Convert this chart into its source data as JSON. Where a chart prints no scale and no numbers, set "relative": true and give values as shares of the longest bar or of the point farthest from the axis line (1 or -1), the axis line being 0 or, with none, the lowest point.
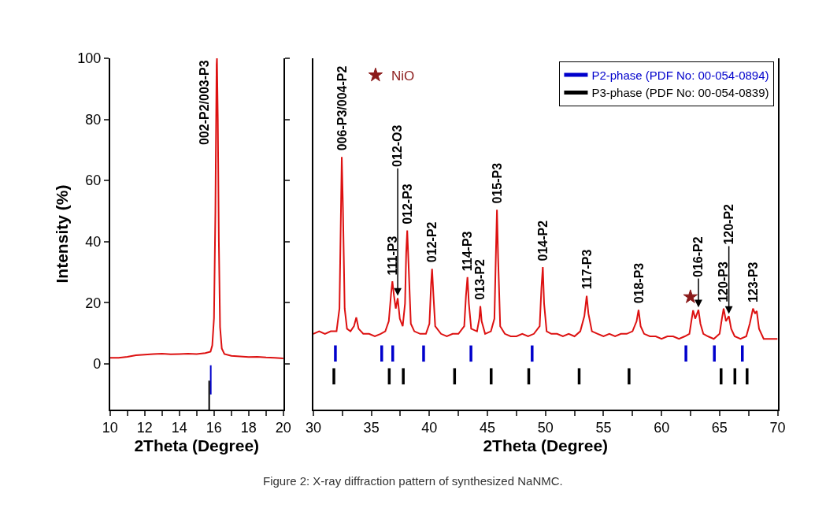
{
  "chart_data": [
    {
      "type": "line",
      "xlabel": "2Theta (Degree)",
      "ylabel": "Intensity (%)",
      "xlim": [
        10,
        20
      ],
      "xticks": [
        10,
        {
          "value": 11,
          "label": null
        },
        12,
        {
          "value": 13,
          "label": null
        },
        14,
        {
          "value": 15,
          "label": null
        },
        16,
        {
          "value": 17,
          "label": null
        },
        18,
        {
          "value": 19,
          "label": null
        },
        20
      ],
      "ylim": [
        -15,
        100
      ],
      "yticks": [
        0,
        20,
        40,
        60,
        80,
        100
      ],
      "series": [
        {
          "color": "#dd1111",
          "x": [
            10,
            10.5,
            11,
            11.5,
            12,
            12.5,
            13,
            13.5,
            14,
            14.5,
            15,
            15.5,
            15.8,
            15.9,
            16.0,
            16.08,
            16.15,
            16.17,
            16.22,
            16.28,
            16.35,
            16.45,
            16.6,
            17,
            17.5,
            18,
            18.5,
            19,
            19.5,
            20
          ],
          "values": [
            2,
            2,
            2.3,
            2.8,
            3,
            3.2,
            3.3,
            3.1,
            3.2,
            3.3,
            3.2,
            3.5,
            4,
            6,
            15,
            50,
            98,
            100,
            80,
            40,
            12,
            5,
            3.2,
            2.6,
            2.4,
            2.2,
            2.3,
            2.1,
            2,
            1.8
          ]
        },
        {
          "type": "bar",
          "color": "#0000cc",
          "x": [
            15.81
          ],
          "values": [
            9.5
          ],
          "base": [
            -10
          ]
        },
        {
          "type": "bar",
          "color": "#000000",
          "x": [
            15.71
          ],
          "values": [
            9.5
          ],
          "base": [
            -15
          ]
        }
      ],
      "annotations": [
        {
          "text": "002-P2/003-P3",
          "x": 16.17,
          "y": 100
        }
      ]
    },
    {
      "type": "line",
      "relative": true,
      "xlabel": "2Theta (Degree)",
      "xlim": [
        30,
        70
      ],
      "xticks": [
        30,
        {
          "value": 32.5,
          "label": null
        },
        35,
        {
          "value": 37.5,
          "label": null
        },
        40,
        {
          "value": 42.5,
          "label": null
        },
        45,
        {
          "value": 47.5,
          "label": null
        },
        50,
        {
          "value": 52.5,
          "label": null
        },
        55,
        {
          "value": 57.5,
          "label": null
        },
        60,
        {
          "value": 62.5,
          "label": null
        },
        65,
        {
          "value": 67.5,
          "label": null
        },
        70
      ],
      "tick_labels": "x",
      "legend": "top right",
      "series": [
        {
          "color": "#dd1111",
          "x": [
            30,
            30.5,
            31,
            31.5,
            32,
            32.25,
            32.4,
            32.45,
            32.55,
            32.7,
            32.9,
            33.2,
            33.5,
            33.7,
            33.9,
            34.3,
            34.8,
            35.3,
            35.8,
            36.2,
            36.5,
            36.7,
            36.81,
            36.95,
            37.1,
            37.27,
            37.45,
            37.7,
            37.9,
            38.0,
            38.09,
            38.2,
            38.4,
            38.7,
            39.2,
            39.7,
            40.0,
            40.15,
            40.23,
            40.35,
            40.5,
            41,
            41.5,
            42,
            42.5,
            43,
            43.15,
            43.28,
            43.4,
            43.6,
            44.1,
            44.3,
            44.39,
            44.5,
            44.8,
            45.3,
            45.6,
            45.72,
            45.82,
            45.92,
            46.1,
            46.5,
            47,
            47.5,
            48,
            48.5,
            49,
            49.5,
            49.65,
            49.77,
            49.88,
            50.1,
            50.5,
            51,
            51.5,
            52,
            52.5,
            53,
            53.35,
            53.55,
            53.7,
            54,
            54.5,
            55,
            55.5,
            56,
            56.5,
            57,
            57.5,
            57.85,
            58.02,
            58.2,
            58.5,
            59,
            59.5,
            60,
            60.5,
            61,
            61.5,
            62,
            62.4,
            62.6,
            62.72,
            62.9,
            63.18,
            63.35,
            63.6,
            64,
            64.5,
            65,
            65.2,
            65.35,
            65.55,
            65.8,
            66.0,
            66.3,
            66.8,
            67.3,
            67.6,
            67.88,
            68.05,
            68.2,
            68.4,
            68.8,
            69.3,
            70
          ],
          "values": [
            0.3,
            0.31,
            0.3,
            0.31,
            0.31,
            0.4,
            0.85,
            1.0,
            0.8,
            0.4,
            0.32,
            0.31,
            0.33,
            0.365,
            0.32,
            0.3,
            0.3,
            0.29,
            0.3,
            0.31,
            0.35,
            0.46,
            0.508,
            0.45,
            0.4,
            0.441,
            0.36,
            0.33,
            0.42,
            0.62,
            0.709,
            0.58,
            0.34,
            0.31,
            0.3,
            0.3,
            0.34,
            0.5,
            0.557,
            0.45,
            0.33,
            0.3,
            0.29,
            0.3,
            0.3,
            0.33,
            0.45,
            0.524,
            0.42,
            0.32,
            0.31,
            0.36,
            0.41,
            0.35,
            0.3,
            0.31,
            0.36,
            0.6,
            0.791,
            0.6,
            0.33,
            0.3,
            0.29,
            0.29,
            0.3,
            0.29,
            0.3,
            0.33,
            0.48,
            0.564,
            0.42,
            0.31,
            0.3,
            0.3,
            0.29,
            0.3,
            0.29,
            0.31,
            0.37,
            0.45,
            0.38,
            0.31,
            0.3,
            0.29,
            0.3,
            0.29,
            0.3,
            0.3,
            0.31,
            0.35,
            0.395,
            0.33,
            0.3,
            0.29,
            0.29,
            0.28,
            0.29,
            0.29,
            0.28,
            0.29,
            0.3,
            0.36,
            0.393,
            0.36,
            0.395,
            0.34,
            0.3,
            0.29,
            0.28,
            0.3,
            0.36,
            0.4,
            0.35,
            0.37,
            0.32,
            0.29,
            0.28,
            0.29,
            0.34,
            0.4,
            0.38,
            0.39,
            0.32,
            0.28,
            0.28,
            0.28
          ]
        },
        {
          "type": "line",
          "name": "P2-phase (PDF No: 00-054-0894)",
          "color": "#0000cc",
          "x": [
            31.9,
            31.9,
            null,
            35.89,
            35.89,
            null,
            36.84,
            36.84,
            null,
            39.5,
            39.5,
            null,
            43.58,
            43.58,
            null,
            48.85,
            48.85,
            null,
            62.1,
            62.1,
            null,
            64.55,
            64.55,
            null,
            66.96,
            66.96
          ],
          "values": [
            0.19,
            0.254,
            null,
            0.19,
            0.254,
            null,
            0.19,
            0.254,
            null,
            0.19,
            0.254,
            null,
            0.19,
            0.254,
            null,
            0.19,
            0.254,
            null,
            0.19,
            0.254,
            null,
            0.19,
            0.254,
            null,
            0.19,
            0.254
          ]
        },
        {
          "type": "line",
          "name": "P3-phase (PDF No: 00-054-0839)",
          "color": "#000000",
          "x": [
            31.77,
            31.77,
            null,
            36.54,
            36.54,
            null,
            37.75,
            37.75,
            null,
            42.17,
            42.17,
            null,
            45.32,
            45.32,
            null,
            48.56,
            48.56,
            null,
            52.9,
            52.9,
            null,
            57.2,
            57.2,
            null,
            65.13,
            65.13,
            null,
            66.32,
            66.32,
            null,
            67.37,
            67.37
          ],
          "values": [
            0.1,
            0.164,
            null,
            0.1,
            0.164,
            null,
            0.1,
            0.164,
            null,
            0.1,
            0.164,
            null,
            0.1,
            0.164,
            null,
            0.1,
            0.164,
            null,
            0.1,
            0.164,
            null,
            0.1,
            0.164,
            null,
            0.1,
            0.164,
            null,
            0.1,
            0.164,
            null,
            0.1,
            0.164
          ]
        },
        {
          "type": "scatter",
          "name": "NiO",
          "color": "#8b1a1a",
          "marker": "star",
          "x": [
            62.49
          ],
          "values": [
            0.446
          ]
        }
      ],
      "annotations": [
        {
          "text": "006-P3/004-P2",
          "x": 32.45,
          "y": 1.0
        },
        {
          "text": "111-P3",
          "x": 36.81,
          "y": 0.508
        },
        {
          "text": "012-O3",
          "x": 37.27,
          "y": 0.441
        },
        {
          "text": "012-P3",
          "x": 38.09,
          "y": 0.709
        },
        {
          "text": "012-P2",
          "x": 40.23,
          "y": 0.557
        },
        {
          "text": "114-P3",
          "x": 43.28,
          "y": 0.524
        },
        {
          "text": "013-P2",
          "x": 44.39,
          "y": 0.41
        },
        {
          "text": "015-P3",
          "x": 45.82,
          "y": 0.791
        },
        {
          "text": "014-P2",
          "x": 49.77,
          "y": 0.564
        },
        {
          "text": "117-P3",
          "x": 53.55,
          "y": 0.45
        },
        {
          "text": "018-P3",
          "x": 58.02,
          "y": 0.395
        },
        {
          "text": "016-P2",
          "x": 63.18,
          "y": 0.395
        },
        {
          "text": "120-P3",
          "x": 65.35,
          "y": 0.4
        },
        {
          "text": "120-P2",
          "x": 65.8,
          "y": 0.37
        },
        {
          "text": "123-P3",
          "x": 67.88,
          "y": 0.4
        },
        "Figure 2: X-ray diffraction pattern of synthesized NaNMC."
      ]
    }
  ]
}
